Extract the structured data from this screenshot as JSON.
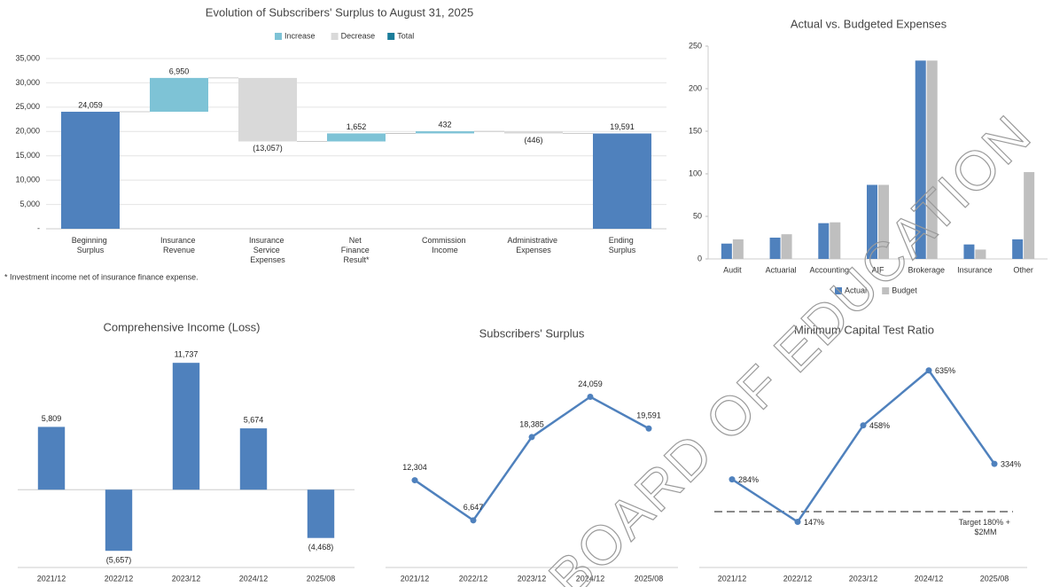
{
  "chart_data": [
    {
      "type": "waterfall",
      "title": "Evolution of Subscribers' Surplus to August 31, 2025",
      "legend": [
        {
          "name": "Increase",
          "color": "#7ec3d6"
        },
        {
          "name": "Decrease",
          "color": "#d9d9d9"
        },
        {
          "name": "Total",
          "color": "#1b7d9a"
        }
      ],
      "categories": [
        "Beginning Surplus",
        "Insurance Revenue",
        "Insurance Service Expenses",
        "Net Finance Result*",
        "Commission Income",
        "Administrative Expenses",
        "Ending Surplus"
      ],
      "values": [
        24059,
        6950,
        -13057,
        1652,
        432,
        -446,
        19591
      ],
      "value_labels": [
        "24,059",
        "6,950",
        "(13,057)",
        "1,652",
        "432",
        "(446)",
        "19,591"
      ],
      "colors": [
        "#4f81bd",
        "#7ec3d6",
        "#d9d9d9",
        "#7ec3d6",
        "#7ec3d6",
        "#d9d9d9",
        "#4f81bd"
      ],
      "ylim": [
        0,
        35000
      ],
      "yticks": [
        {
          "value": 0,
          "label": "-"
        },
        {
          "value": 5000,
          "label": "5,000"
        },
        {
          "value": 10000,
          "label": "10,000"
        },
        {
          "value": 15000,
          "label": "15,000"
        },
        {
          "value": 20000,
          "label": "20,000"
        },
        {
          "value": 25000,
          "label": "25,000"
        },
        {
          "value": 30000,
          "label": "30,000"
        },
        {
          "value": 35000,
          "label": "35,000"
        }
      ],
      "grid": true,
      "footnote": "* Investment income net of insurance finance expense."
    },
    {
      "type": "bar",
      "title": "Actual vs. Budgeted Expenses",
      "categories": [
        "Audit",
        "Actuarial",
        "Accounting",
        "AIF",
        "Brokerage",
        "Insurance",
        "Other"
      ],
      "series": [
        {
          "name": "Actual",
          "color": "#4f81bd",
          "values": [
            18,
            25,
            42,
            87,
            233,
            17,
            23
          ]
        },
        {
          "name": "Budget",
          "color": "#bfbfbf",
          "values": [
            23,
            29,
            43,
            87,
            233,
            11,
            102
          ]
        }
      ],
      "ylim": [
        0,
        250
      ],
      "yticks": [
        0,
        50,
        100,
        150,
        200,
        250
      ],
      "grid": false,
      "legend_position": "bottom"
    },
    {
      "type": "bar",
      "title": "Comprehensive Income (Loss)",
      "categories": [
        "2021/12",
        "2022/12",
        "2023/12",
        "2024/12",
        "2025/08"
      ],
      "values": [
        5809,
        -5657,
        11737,
        5674,
        -4468
      ],
      "value_labels": [
        "5,809",
        "(5,657)",
        "11,737",
        "5,674",
        "(4,468)"
      ],
      "color": "#4f81bd",
      "ylim": [
        -7200,
        12900
      ]
    },
    {
      "type": "line",
      "title": "Subscribers' Surplus",
      "categories": [
        "2021/12",
        "2022/12",
        "2023/12",
        "2024/12",
        "2025/08"
      ],
      "values": [
        12304,
        6647,
        18385,
        24059,
        19591
      ],
      "value_labels": [
        "12,304",
        "6,647",
        "18,385",
        "24,059",
        "19,591"
      ],
      "color": "#4f81bd",
      "ylim": [
        0,
        30000
      ]
    },
    {
      "type": "line",
      "title": "Minimum Capital Test Ratio",
      "categories": [
        "2021/12",
        "2022/12",
        "2023/12",
        "2024/12",
        "2025/08"
      ],
      "values": [
        284,
        147,
        458,
        635,
        334
      ],
      "value_labels": [
        "284%",
        "147%",
        "458%",
        "635%",
        "334%"
      ],
      "color": "#4f81bd",
      "ylim": [
        0,
        700
      ],
      "target": 180,
      "annotation": "Target 180% + $2MM"
    }
  ],
  "watermark": "BOARD OF EDUCATION"
}
